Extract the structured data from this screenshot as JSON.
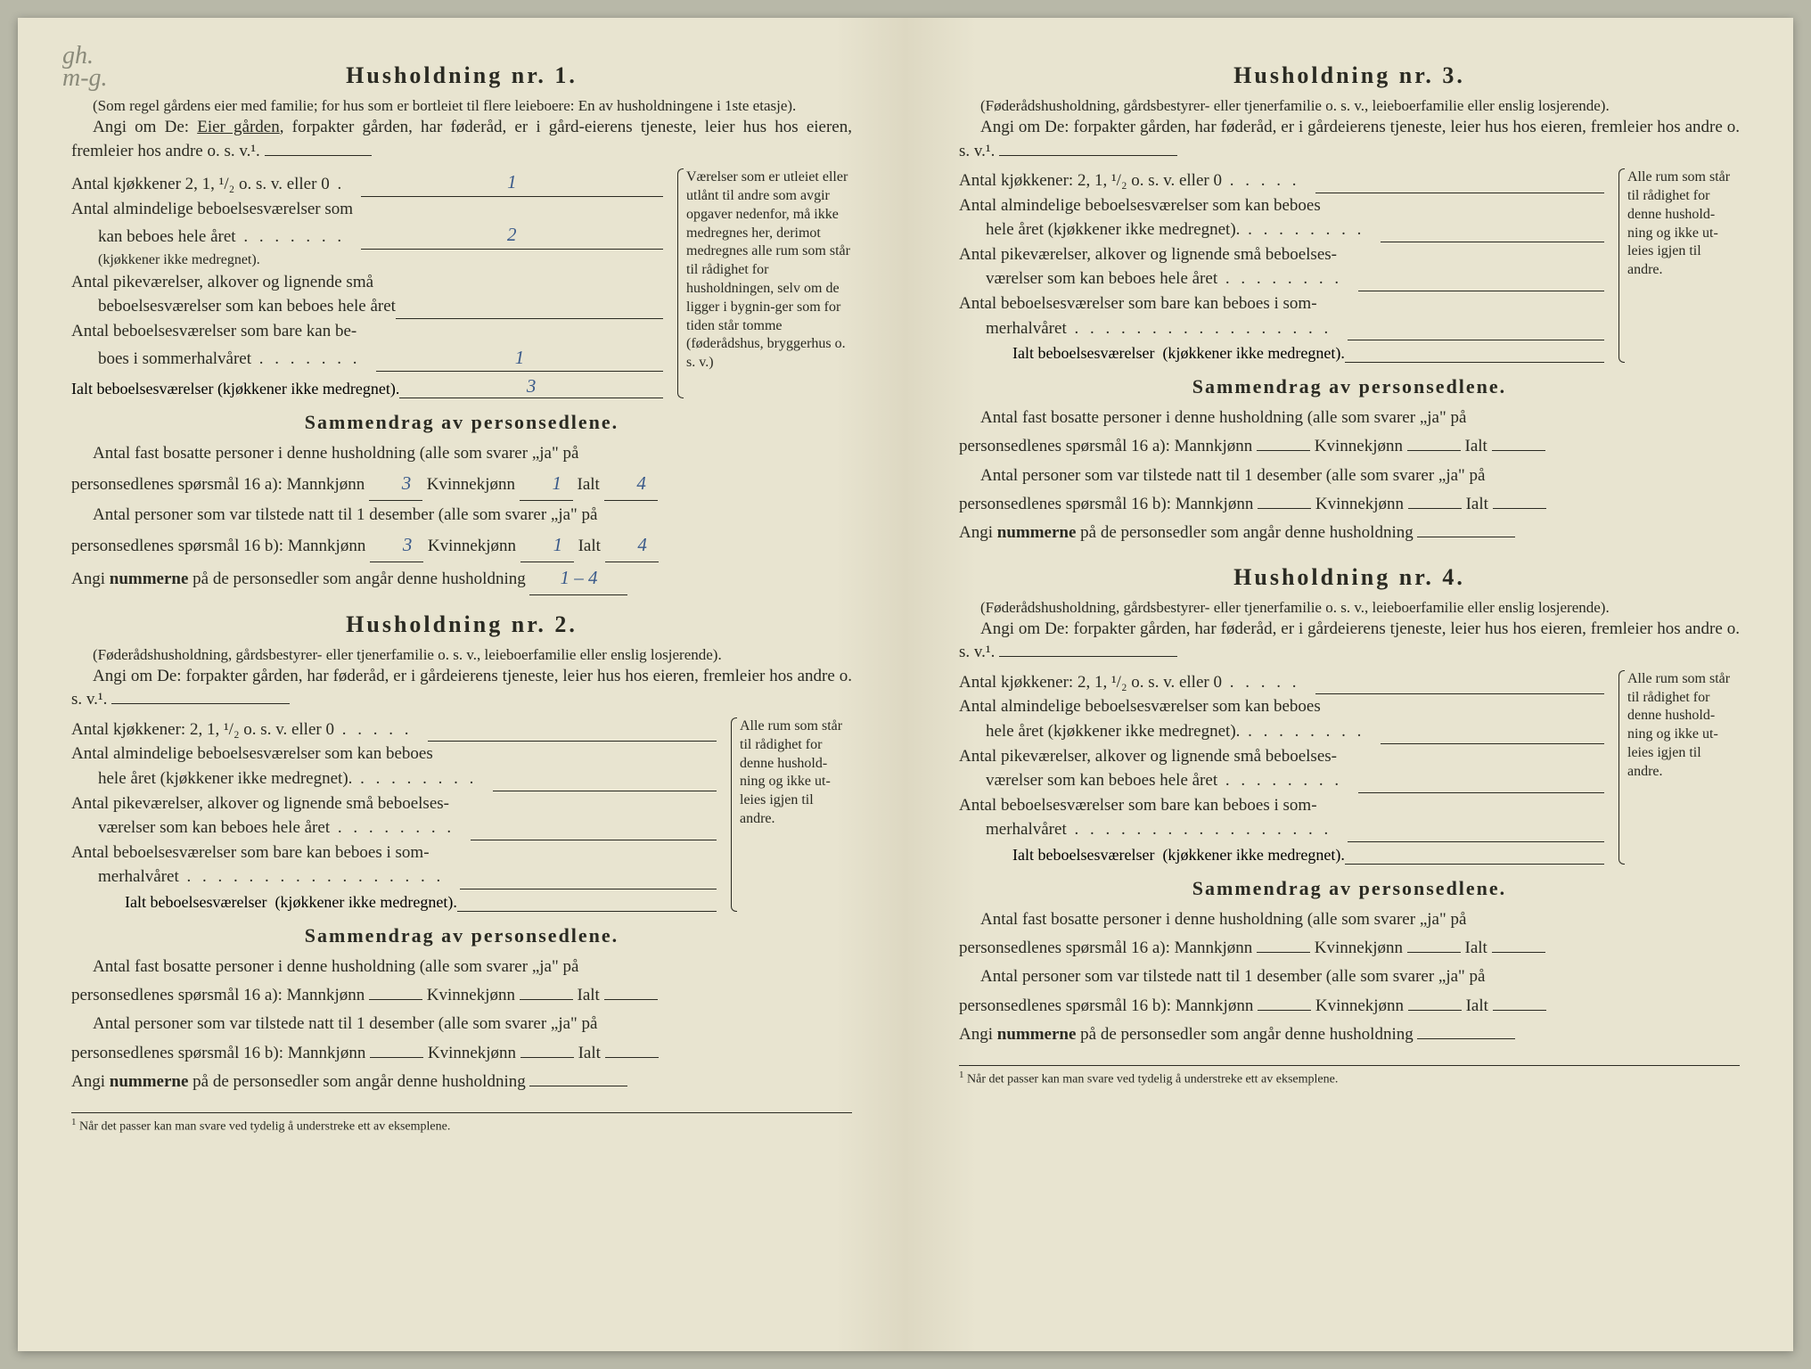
{
  "pencilNote": "gh.\nm-g.",
  "left": {
    "h1": {
      "title": "Husholdning nr. 1.",
      "note": "(Som regel gårdens eier med familie; for hus som er bortleiet til flere leieboere: En av husholdningene i 1ste etasje).",
      "angiPrefix": "Angi om De:",
      "angiUnderlined": "Eier gården",
      "angiRest": ", forpakter gården, har føderåd, er i gård-eierens tjeneste, leier hus hos eieren, fremleier hos andre o. s. v.¹.",
      "rows": {
        "kjokken": {
          "label": "Antal kjøkkener 2, 1, ¹/₂ o. s. v. eller 0",
          "value": "1"
        },
        "almindelige1": "Antal almindelige beboelsesværelser som",
        "almindelige2": "kan beboes hele året",
        "almindeligeVal": "2",
        "almindeligeNote": "(kjøkkener ikke medregnet).",
        "pike1": "Antal pikeværelser, alkover og lignende små",
        "pike2": "beboelsesværelser som kan beboes hele året",
        "pikeVal": "",
        "sommer1": "Antal beboelsesværelser som bare kan be-",
        "sommer2": "boes i sommerhalvåret",
        "sommerVal": "1",
        "ialt": "Ialt beboelsesværelser (kjøkkener ikke medregnet).",
        "ialtVal": "3"
      },
      "sideNote": "Værelser som er utleiet eller utlånt til andre som avgir opgaver nedenfor, må ikke medregnes her, derimot medregnes alle rum som står til rådighet for husholdningen, selv om de ligger i bygnin-ger som for tiden står tomme (føderådshus, bryggerhus o. s. v.)",
      "summaryTitle": "Sammendrag av personsedlene.",
      "sum1a": "Antal fast bosatte personer i denne husholdning (alle som svarer „ja\" på",
      "sum1b": "personsedlenes spørsmål 16 a): Mannkjønn",
      "sum1M": "3",
      "sum1K": "1",
      "sum1I": "4",
      "sum2a": "Antal personer som var tilstede natt til 1 desember (alle som svarer „ja\" på",
      "sum2b": "personsedlenes spørsmål 16 b): Mannkjønn",
      "sum2M": "3",
      "sum2K": "1",
      "sum2I": "4",
      "sumNum": "Angi",
      "sumNumBold": "nummerne",
      "sumNumRest": "på de personsedler som angår denne husholdning",
      "sumNumVal": "1 – 4",
      "kvinne": "Kvinnekjønn",
      "ialtLbl": "Ialt"
    },
    "h2": {
      "title": "Husholdning nr. 2.",
      "note": "(Føderådshusholdning, gårdsbestyrer- eller tjenerfamilie o. s. v., leieboerfamilie eller enslig losjerende).",
      "angi": "Angi om De:  forpakter gården, har føderåd, er i gårdeierens tjeneste, leier hus hos eieren, fremleier hos andre o. s. v.¹.",
      "rows": {
        "kjokken": "Antal kjøkkener: 2, 1, ¹/₂ o. s. v. eller 0",
        "alm1": "Antal almindelige beboelsesværelser som kan beboes",
        "alm2": "hele året (kjøkkener ikke medregnet).",
        "pike1": "Antal pikeværelser, alkover og lignende små beboelses-",
        "pike2": "værelser som kan beboes hele året",
        "som1": "Antal beboelsesværelser som bare kan beboes i som-",
        "som2": "merhalvåret",
        "ialt": "Ialt beboelsesværelser  (kjøkkener ikke medregnet)."
      },
      "sideNote": "Alle rum som står til rådighet for denne hushold-ning og ikke ut-leies igjen til andre.",
      "summaryTitle": "Sammendrag av personsedlene.",
      "sum1a": "Antal fast bosatte personer i denne husholdning (alle som svarer „ja\" på",
      "sum1b": "personsedlenes spørsmål 16 a): Mannkjønn",
      "sum2a": "Antal personer som var tilstede natt til 1 desember (alle som svarer „ja\" på",
      "sum2b": "personsedlenes spørsmål 16 b): Mannkjønn",
      "sumNum": "Angi",
      "sumNumBold": "nummerne",
      "sumNumRest": "på de personsedler som angår denne husholdning",
      "kvinne": "Kvinnekjønn",
      "ialtLbl": "Ialt"
    },
    "footnote": "Når det passer kan man svare ved tydelig å understreke ett av eksemplene."
  },
  "right": {
    "h3": {
      "title": "Husholdning nr. 3.",
      "note": "(Føderådshusholdning, gårdsbestyrer- eller tjenerfamilie o. s. v., leieboerfamilie eller enslig losjerende).",
      "angi": "Angi om De:  forpakter gården, har føderåd, er i gårdeierens tjeneste, leier hus hos eieren, fremleier hos andre o. s. v.¹.",
      "rows": {
        "kjokken": "Antal kjøkkener: 2, 1, ¹/₂ o. s. v. eller 0",
        "alm1": "Antal almindelige beboelsesværelser som kan beboes",
        "alm2": "hele året (kjøkkener ikke medregnet).",
        "pike1": "Antal pikeværelser, alkover og lignende små beboelses-",
        "pike2": "værelser som kan beboes hele året",
        "som1": "Antal beboelsesværelser som bare kan beboes i som-",
        "som2": "merhalvåret",
        "ialt": "Ialt beboelsesværelser  (kjøkkener ikke medregnet)."
      },
      "sideNote": "Alle rum som står til rådighet for denne hushold-ning og ikke ut-leies igjen til andre.",
      "summaryTitle": "Sammendrag av personsedlene.",
      "sum1a": "Antal fast bosatte personer i denne husholdning (alle som svarer „ja\" på",
      "sum1b": "personsedlenes spørsmål 16 a): Mannkjønn",
      "sum2a": "Antal personer som var tilstede natt til 1 desember (alle som svarer „ja\" på",
      "sum2b": "personsedlenes spørsmål 16 b): Mannkjønn",
      "sumNum": "Angi",
      "sumNumBold": "nummerne",
      "sumNumRest": "på de personsedler som angår denne husholdning",
      "kvinne": "Kvinnekjønn",
      "ialtLbl": "Ialt"
    },
    "h4": {
      "title": "Husholdning nr. 4.",
      "note": "(Føderådshusholdning, gårdsbestyrer- eller tjenerfamilie o. s. v., leieboerfamilie eller enslig losjerende).",
      "angi": "Angi om De:  forpakter gården, har føderåd, er i gårdeierens tjeneste, leier hus hos eieren, fremleier hos andre o. s. v.¹.",
      "rows": {
        "kjokken": "Antal kjøkkener: 2, 1, ¹/₂ o. s. v. eller 0",
        "alm1": "Antal almindelige beboelsesværelser som kan beboes",
        "alm2": "hele året (kjøkkener ikke medregnet).",
        "pike1": "Antal pikeværelser, alkover og lignende små beboelses-",
        "pike2": "værelser som kan beboes hele året",
        "som1": "Antal beboelsesværelser som bare kan beboes i som-",
        "som2": "merhalvåret",
        "ialt": "Ialt beboelsesværelser  (kjøkkener ikke medregnet)."
      },
      "sideNote": "Alle rum som står til rådighet for denne hushold-ning og ikke ut-leies igjen til andre.",
      "summaryTitle": "Sammendrag av personsedlene.",
      "sum1a": "Antal fast bosatte personer i denne husholdning (alle som svarer „ja\" på",
      "sum1b": "personsedlenes spørsmål 16 a): Mannkjønn",
      "sum2a": "Antal personer som var tilstede natt til 1 desember (alle som svarer „ja\" på",
      "sum2b": "personsedlenes spørsmål 16 b): Mannkjønn",
      "sumNum": "Angi",
      "sumNumBold": "nummerne",
      "sumNumRest": "på de personsedler som angår denne husholdning",
      "kvinne": "Kvinnekjønn",
      "ialtLbl": "Ialt"
    },
    "footnote": "Når det passer kan man svare ved tydelig å understreke ett av eksemplene."
  }
}
